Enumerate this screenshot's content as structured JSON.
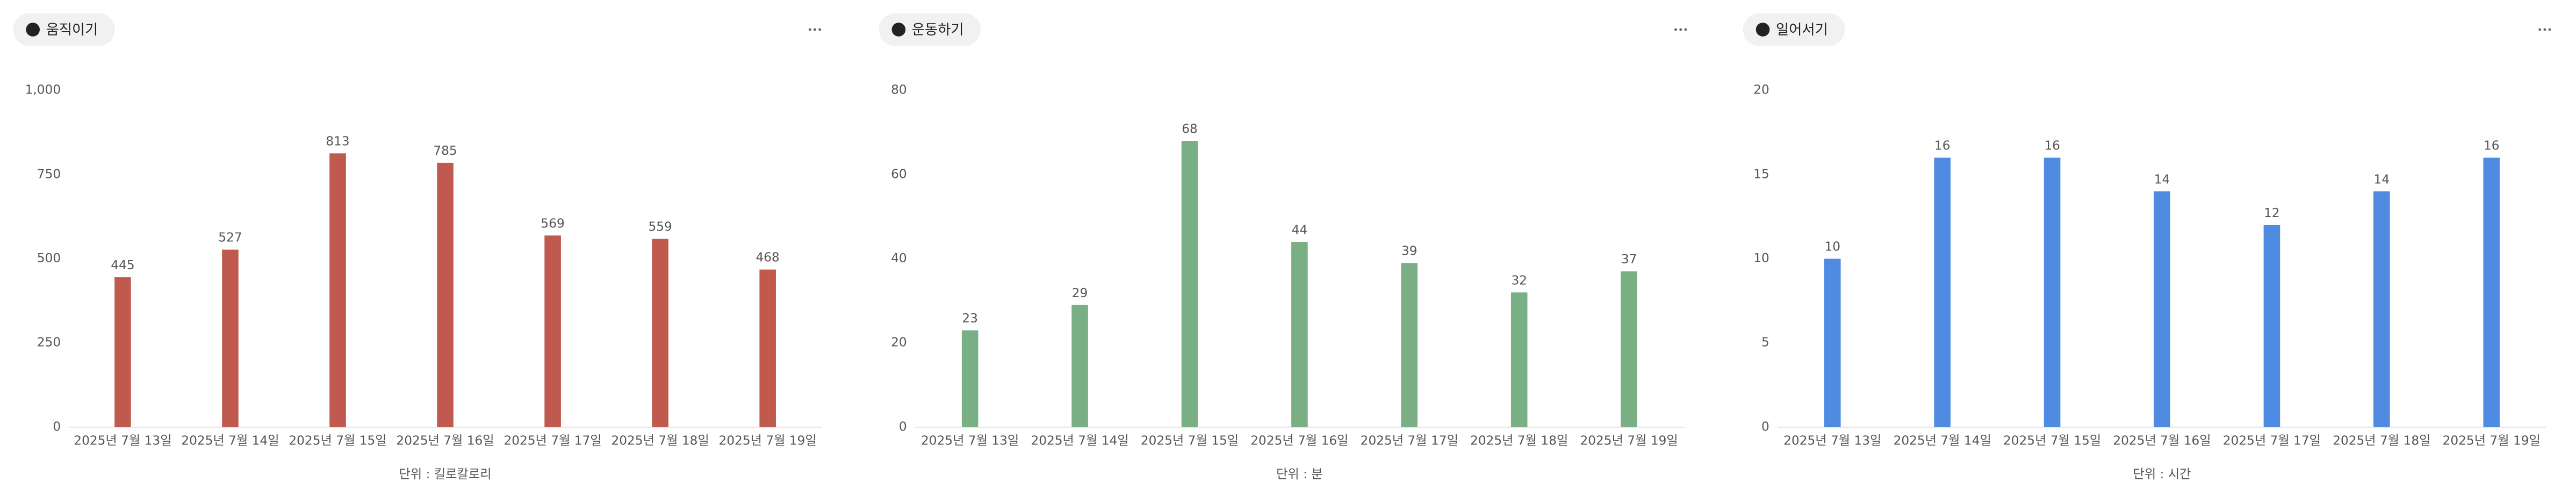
{
  "chart_data": [
    {
      "type": "bar",
      "title": "움직이기",
      "xlabel": "단위 : 킬로칼로리",
      "color": "#c0594e",
      "categories": [
        "2025년 7월 13일",
        "2025년 7월 14일",
        "2025년 7월 15일",
        "2025년 7월 16일",
        "2025년 7월 17일",
        "2025년 7월 18일",
        "2025년 7월 19일"
      ],
      "values": [
        445,
        527,
        813,
        785,
        569,
        559,
        468
      ],
      "ylim": [
        0,
        1000
      ],
      "yticks": [
        0,
        250,
        500,
        750,
        {
          "value": 1000,
          "label": "1,000"
        }
      ],
      "grid": false
    },
    {
      "type": "bar",
      "title": "운동하기",
      "xlabel": "단위 : 분",
      "color": "#7aaf85",
      "categories": [
        "2025년 7월 13일",
        "2025년 7월 14일",
        "2025년 7월 15일",
        "2025년 7월 16일",
        "2025년 7월 17일",
        "2025년 7월 18일",
        "2025년 7월 19일"
      ],
      "values": [
        23,
        29,
        68,
        44,
        39,
        32,
        37
      ],
      "ylim": [
        0,
        80
      ],
      "yticks": [
        0,
        20,
        40,
        60,
        80
      ],
      "grid": false
    },
    {
      "type": "bar",
      "title": "일어서기",
      "xlabel": "단위 : 시간",
      "color": "#4f8be0",
      "categories": [
        "2025년 7월 13일",
        "2025년 7월 14일",
        "2025년 7월 15일",
        "2025년 7월 16일",
        "2025년 7월 17일",
        "2025년 7월 18일",
        "2025년 7월 19일"
      ],
      "values": [
        10,
        16,
        16,
        14,
        12,
        14,
        16
      ],
      "ylim": [
        0,
        20
      ],
      "yticks": [
        0,
        5,
        10,
        15,
        20
      ],
      "grid": false
    }
  ]
}
